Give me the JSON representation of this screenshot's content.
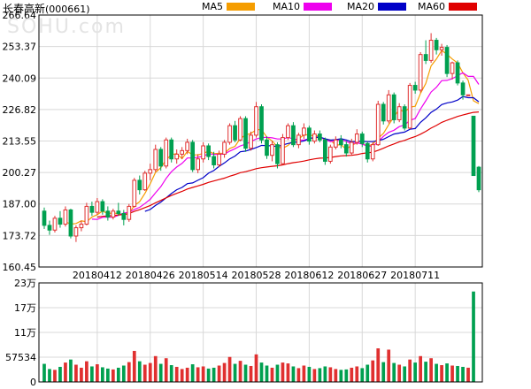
{
  "title": {
    "name": "长春高新",
    "code": "(000661)"
  },
  "watermark": "SOHU.com",
  "legend": [
    {
      "label": "MA5",
      "color": "#f59d00"
    },
    {
      "label": "MA10",
      "color": "#ee00ee"
    },
    {
      "label": "MA20",
      "color": "#0000c8"
    },
    {
      "label": "MA60",
      "color": "#e00000"
    }
  ],
  "colors": {
    "up": "#e03030",
    "down": "#00a050",
    "grid": "#d8d8d8",
    "axis": "#000000"
  },
  "chart_data": {
    "type": "candlestick",
    "price_axis": {
      "ticks": [
        "266.64",
        "253.37",
        "240.09",
        "226.82",
        "213.55",
        "200.27",
        "187.00",
        "173.72",
        "160.45"
      ],
      "min": 160.45,
      "max": 266.64
    },
    "volume_axis": {
      "ticks": [
        "23万",
        "17万",
        "11万",
        "57534",
        "0"
      ],
      "tick_values": [
        230000,
        172600,
        115000,
        57534,
        0
      ],
      "max": 230000
    },
    "x_labels": [
      {
        "label": "20180412",
        "index": 10
      },
      {
        "label": "20180426",
        "index": 20
      },
      {
        "label": "20180514",
        "index": 30
      },
      {
        "label": "20180528",
        "index": 40
      },
      {
        "label": "20180612",
        "index": 50
      },
      {
        "label": "20180627",
        "index": 60
      },
      {
        "label": "20180711",
        "index": 70
      }
    ],
    "candles": [
      [
        184.0,
        178.0,
        185.5,
        176.5
      ],
      [
        178.0,
        176.0,
        180.0,
        174.0
      ],
      [
        176.0,
        181.0,
        182.0,
        175.0
      ],
      [
        181.0,
        178.5,
        184.0,
        177.0
      ],
      [
        178.5,
        184.5,
        186.0,
        177.5
      ],
      [
        184.5,
        173.5,
        185.0,
        172.5
      ],
      [
        173.5,
        177.0,
        178.0,
        171.0
      ],
      [
        177.0,
        178.5,
        180.0,
        175.5
      ],
      [
        178.5,
        186.0,
        187.5,
        178.0
      ],
      [
        186.0,
        183.5,
        188.0,
        182.0
      ],
      [
        183.5,
        188.0,
        189.5,
        182.5
      ],
      [
        188.0,
        184.0,
        189.0,
        182.5
      ],
      [
        184.0,
        181.5,
        186.0,
        180.0
      ],
      [
        181.5,
        184.0,
        185.0,
        180.5
      ],
      [
        184.0,
        183.0,
        187.5,
        182.0
      ],
      [
        183.0,
        180.5,
        184.5,
        178.0
      ],
      [
        180.5,
        186.0,
        187.0,
        179.5
      ],
      [
        186.0,
        197.0,
        198.0,
        185.5
      ],
      [
        197.0,
        193.0,
        199.0,
        191.0
      ],
      [
        193.0,
        200.0,
        201.0,
        192.5
      ],
      [
        200.0,
        201.5,
        204.0,
        197.0
      ],
      [
        201.5,
        210.0,
        212.0,
        200.5
      ],
      [
        210.0,
        203.0,
        211.0,
        201.0
      ],
      [
        203.0,
        214.0,
        215.0,
        202.0
      ],
      [
        214.0,
        206.0,
        215.0,
        204.5
      ],
      [
        206.0,
        208.0,
        210.0,
        204.0
      ],
      [
        208.0,
        209.5,
        211.0,
        206.0
      ],
      [
        209.5,
        213.0,
        214.5,
        208.0
      ],
      [
        213.0,
        201.5,
        214.0,
        200.5
      ],
      [
        201.5,
        206.0,
        208.0,
        200.0
      ],
      [
        206.0,
        211.5,
        213.0,
        204.5
      ],
      [
        211.5,
        207.0,
        212.5,
        205.5
      ],
      [
        207.0,
        203.5,
        209.0,
        202.0
      ],
      [
        203.5,
        208.0,
        209.5,
        202.5
      ],
      [
        208.0,
        213.0,
        214.0,
        206.5
      ],
      [
        213.0,
        220.0,
        221.0,
        212.0
      ],
      [
        220.0,
        214.0,
        222.0,
        213.0
      ],
      [
        214.0,
        223.0,
        224.0,
        213.5
      ],
      [
        223.0,
        210.5,
        224.0,
        209.0
      ],
      [
        210.5,
        216.0,
        217.5,
        209.5
      ],
      [
        216.0,
        228.0,
        230.0,
        215.0
      ],
      [
        228.0,
        214.0,
        229.0,
        212.5
      ],
      [
        214.0,
        207.5,
        215.5,
        206.0
      ],
      [
        207.5,
        212.0,
        213.5,
        205.0
      ],
      [
        212.0,
        204.0,
        213.0,
        202.0
      ],
      [
        204.0,
        215.0,
        216.5,
        203.5
      ],
      [
        215.0,
        220.0,
        221.0,
        214.0
      ],
      [
        220.0,
        212.0,
        221.5,
        211.0
      ],
      [
        212.0,
        216.0,
        217.0,
        210.5
      ],
      [
        216.0,
        219.0,
        221.0,
        214.5
      ],
      [
        219.0,
        213.5,
        220.0,
        212.0
      ],
      [
        213.5,
        216.5,
        218.0,
        212.5
      ],
      [
        216.5,
        214.0,
        218.0,
        213.0
      ],
      [
        214.0,
        205.0,
        215.0,
        203.5
      ],
      [
        205.0,
        211.0,
        212.0,
        204.0
      ],
      [
        211.0,
        214.0,
        215.5,
        210.0
      ],
      [
        214.0,
        212.0,
        216.0,
        210.5
      ],
      [
        212.0,
        208.5,
        213.5,
        207.0
      ],
      [
        208.5,
        213.0,
        214.5,
        207.5
      ],
      [
        213.0,
        216.5,
        218.5,
        212.0
      ],
      [
        216.5,
        212.5,
        217.5,
        211.0
      ],
      [
        212.5,
        206.0,
        213.5,
        204.5
      ],
      [
        206.0,
        212.0,
        213.0,
        205.0
      ],
      [
        212.0,
        229.0,
        230.5,
        211.5
      ],
      [
        229.0,
        222.0,
        230.0,
        220.5
      ],
      [
        222.0,
        233.0,
        235.0,
        221.0
      ],
      [
        233.0,
        222.5,
        234.0,
        221.0
      ],
      [
        222.5,
        228.0,
        229.5,
        221.5
      ],
      [
        228.0,
        219.0,
        229.0,
        218.0
      ],
      [
        219.0,
        237.0,
        238.0,
        218.5
      ],
      [
        237.0,
        235.0,
        238.5,
        233.5
      ],
      [
        235.0,
        250.0,
        251.0,
        234.0
      ],
      [
        250.0,
        247.5,
        256.0,
        246.0
      ],
      [
        247.5,
        256.0,
        259.0,
        246.5
      ],
      [
        256.0,
        252.0,
        257.0,
        250.0
      ],
      [
        252.0,
        253.0,
        254.5,
        249.5
      ],
      [
        253.0,
        242.0,
        254.0,
        240.5
      ],
      [
        242.0,
        246.5,
        247.0,
        239.5
      ],
      [
        246.5,
        238.0,
        247.5,
        237.0
      ],
      [
        238.0,
        233.0,
        239.0,
        231.0
      ],
      [
        233.0,
        233.0,
        233.0,
        233.0
      ],
      [
        224.0,
        199.0,
        224.0,
        199.0
      ],
      [
        202.5,
        193.0,
        203.0,
        192.0
      ]
    ],
    "volume": [
      42000,
      30000,
      28000,
      35000,
      45000,
      52000,
      40000,
      33000,
      48000,
      36000,
      41000,
      34000,
      31000,
      29000,
      33000,
      38000,
      46000,
      72000,
      48000,
      40000,
      44000,
      60000,
      42000,
      55000,
      39000,
      35000,
      30000,
      33000,
      41000,
      34000,
      36000,
      31000,
      33000,
      38000,
      44000,
      58000,
      42000,
      49000,
      40000,
      37000,
      64000,
      45000,
      38000,
      33000,
      40000,
      45000,
      43000,
      36000,
      32000,
      38000,
      35000,
      30000,
      32000,
      36000,
      34000,
      30000,
      28000,
      29000,
      33000,
      36000,
      32000,
      40000,
      50000,
      78000,
      46000,
      75000,
      44000,
      40000,
      36000,
      52000,
      45000,
      60000,
      47000,
      55000,
      42000,
      39000,
      43000,
      38000,
      37000,
      35000,
      33000,
      210000,
      0
    ],
    "ma5": [
      null,
      null,
      null,
      null,
      179.6,
      178.5,
      178.8,
      179.9,
      179.5,
      181.5,
      182.5,
      184.0,
      183.0,
      183.2,
      182.9,
      182.4,
      183.0,
      186.4,
      188.0,
      191.5,
      195.6,
      200.3,
      202.3,
      205.6,
      207.8,
      208.2,
      206.1,
      209.2,
      207.7,
      207.7,
      208.3,
      209.3,
      208.2,
      208.4,
      208.3,
      210.4,
      211.3,
      214.6,
      216.1,
      216.7,
      218.3,
      218.3,
      215.2,
      213.6,
      211.1,
      210.5,
      211.7,
      213.8,
      214.4,
      216.2,
      216.1,
      215.6,
      215.8,
      213.6,
      214.0,
      211.8,
      212.0,
      210.0,
      211.8,
      212.7,
      212.5,
      211.3,
      212.2,
      214.7,
      216.7,
      220.4,
      223.7,
      226.9,
      225.7,
      227.8,
      228.2,
      233.6,
      237.8,
      245.2,
      248.1,
      251.7,
      250.1,
      248.1,
      246.4,
      242.3,
      239.2,
      230.5,
      229.3
    ],
    "ma10": [
      null,
      null,
      null,
      null,
      null,
      null,
      null,
      null,
      null,
      180.6,
      180.5,
      181.4,
      181.5,
      181.4,
      182.2,
      183.2,
      183.5,
      184.7,
      185.6,
      187.2,
      189.0,
      191.7,
      194.3,
      197.8,
      200.6,
      202.6,
      204.1,
      206.4,
      206.4,
      206.7,
      207.1,
      208.2,
      207.9,
      208.0,
      208.0,
      209.3,
      210.3,
      211.5,
      212.2,
      213.3,
      214.4,
      215.0,
      215.1,
      214.9,
      214.4,
      214.4,
      215.0,
      214.5,
      214.0,
      213.9,
      214.6,
      215.1,
      215.3,
      214.1,
      213.3,
      213.7,
      214.0,
      213.4,
      212.4,
      212.8,
      212.2,
      211.4,
      211.3,
      213.3,
      215.5,
      217.2,
      218.1,
      219.6,
      220.3,
      222.3,
      223.0,
      227.0,
      230.5,
      234.2,
      236.2,
      239.0,
      239.1,
      239.8,
      241.1,
      242.3,
      240.8,
      240.8,
      237.4
    ],
    "ma20": [
      null,
      null,
      null,
      null,
      null,
      null,
      null,
      null,
      null,
      null,
      null,
      null,
      null,
      null,
      null,
      null,
      null,
      null,
      null,
      183.9,
      184.7,
      186.4,
      187.8,
      189.6,
      191.4,
      193.0,
      194.0,
      195.6,
      195.9,
      197.0,
      198.1,
      200.0,
      201.1,
      202.9,
      204.3,
      206.0,
      207.2,
      209.0,
      209.3,
      210.0,
      210.8,
      211.7,
      211.6,
      211.5,
      211.2,
      211.9,
      212.5,
      213.0,
      213.1,
      213.6,
      214.5,
      215.0,
      215.2,
      214.5,
      213.9,
      214.1,
      214.5,
      214.0,
      213.2,
      213.4,
      213.4,
      213.3,
      213.3,
      213.7,
      214.3,
      215.4,
      216.5,
      216.9,
      217.3,
      218.5,
      218.8,
      221.4,
      223.3,
      225.6,
      227.0,
      228.9,
      229.6,
      230.0,
      230.8,
      232.3,
      231.8,
      231.8,
      230.1
    ],
    "ma60": [
      null,
      null,
      null,
      null,
      null,
      null,
      null,
      null,
      null,
      null,
      181.5,
      181.8,
      182.0,
      182.1,
      182.4,
      182.6,
      183.0,
      183.9,
      184.6,
      185.5,
      186.4,
      187.5,
      188.5,
      189.6,
      190.6,
      191.5,
      192.3,
      193.3,
      194.0,
      194.6,
      195.3,
      196.1,
      196.7,
      197.3,
      197.9,
      198.7,
      199.4,
      200.2,
      200.6,
      201.2,
      201.9,
      202.3,
      202.6,
      202.9,
      203.1,
      203.5,
      204.0,
      204.4,
      204.7,
      205.1,
      205.6,
      206.0,
      206.3,
      206.4,
      206.6,
      207.0,
      207.3,
      207.4,
      207.5,
      207.8,
      208.3,
      208.6,
      208.8,
      209.6,
      210.5,
      211.5,
      212.3,
      213.2,
      213.8,
      214.7,
      215.4,
      216.4,
      217.6,
      219.0,
      220.1,
      221.4,
      222.3,
      223.1,
      223.9,
      224.5,
      225.1,
      225.6,
      225.8
    ]
  }
}
